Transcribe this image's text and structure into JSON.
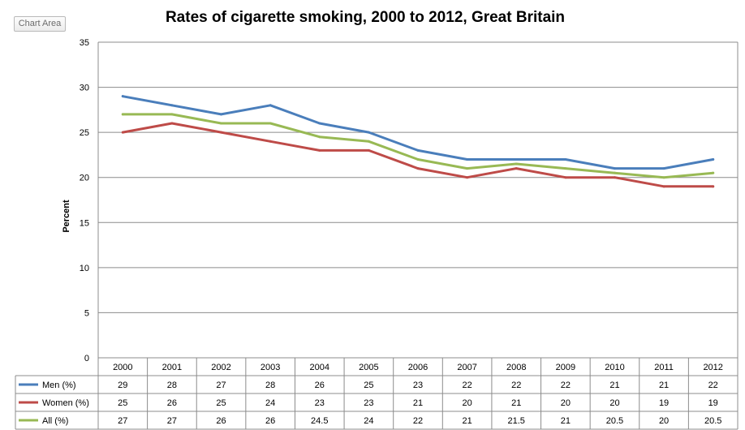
{
  "chart_area_label": "Chart Area",
  "chart_data": {
    "type": "line",
    "title": "Rates of cigarette smoking, 2000 to 2012, Great Britain",
    "ylabel": "Percent",
    "xlabel": "",
    "ylim": [
      0,
      35
    ],
    "yticks": [
      "0",
      "5",
      "10",
      "15",
      "20",
      "25",
      "30",
      "35"
    ],
    "categories": [
      "2000",
      "2001",
      "2002",
      "2003",
      "2004",
      "2005",
      "2006",
      "2007",
      "2008",
      "2009",
      "2010",
      "2011",
      "2012"
    ],
    "grid": "horizontal",
    "legend": "data-table",
    "series": [
      {
        "name": "Men (%)",
        "color": "#4a7ebb",
        "values": [
          29,
          28,
          27,
          28,
          26,
          25,
          23,
          22,
          22,
          22,
          21,
          21,
          22
        ],
        "labels": [
          "29",
          "28",
          "27",
          "28",
          "26",
          "25",
          "23",
          "22",
          "22",
          "22",
          "21",
          "21",
          "22"
        ]
      },
      {
        "name": "Women (%)",
        "color": "#be4b48",
        "values": [
          25,
          26,
          25,
          24,
          23,
          23,
          21,
          20,
          21,
          20,
          20,
          19,
          19
        ],
        "labels": [
          "25",
          "26",
          "25",
          "24",
          "23",
          "23",
          "21",
          "20",
          "21",
          "20",
          "20",
          "19",
          "19"
        ]
      },
      {
        "name": "All (%)",
        "color": "#98b954",
        "values": [
          27,
          27,
          26,
          26,
          24.5,
          24,
          22,
          21,
          21.5,
          21,
          20.5,
          20,
          20.5
        ],
        "labels": [
          "27",
          "27",
          "26",
          "26",
          "24.5",
          "24",
          "22",
          "21",
          "21.5",
          "21",
          "20.5",
          "20",
          "20.5"
        ]
      }
    ]
  }
}
